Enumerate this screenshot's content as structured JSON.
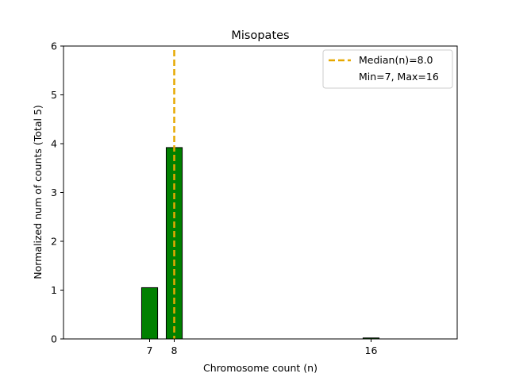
{
  "chart_data": {
    "type": "bar",
    "title": "Misopates",
    "xlabel": "Chromosome count (n)",
    "ylabel": "Normalized num of counts     (Total 5)",
    "x": [
      7,
      8,
      16
    ],
    "values": [
      1.05,
      3.92,
      0.02
    ],
    "xticks": [
      "7",
      "8",
      "16"
    ],
    "yticks": [
      "0",
      "1",
      "2",
      "3",
      "4",
      "5",
      "6"
    ],
    "xlim": [
      3.5,
      19.5
    ],
    "ylim": [
      0,
      6
    ],
    "bar_width": 0.65,
    "bar_color": "#008000",
    "bar_edge_color": "#000000",
    "median": 8.0,
    "median_color": "#e6a800",
    "legend": {
      "placement": "top-right",
      "entries": [
        "Median(n)=8.0",
        "Min=7, Max=16"
      ]
    },
    "grid": false
  }
}
